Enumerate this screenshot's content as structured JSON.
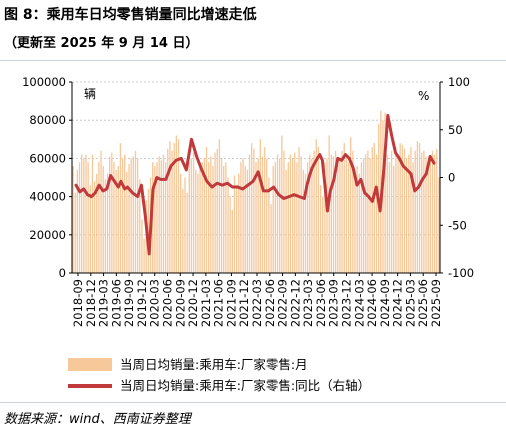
{
  "header": {
    "title": "图 8：乘用车日均零售销量同比增速走低",
    "subtitle": "（更新至 2025 年 9 月 14 日）"
  },
  "footer": {
    "source": "数据来源：wind、西南证券整理"
  },
  "colors": {
    "bar": "#f6c89a",
    "line": "#c0393b",
    "grid": "#bfbfbf"
  },
  "chart_data": {
    "type": "bar",
    "title": "",
    "left_axis": {
      "unit": "辆",
      "ylim": [
        0,
        100000
      ],
      "ticks": [
        "0",
        "20000",
        "40000",
        "60000",
        "80000",
        "100000"
      ]
    },
    "right_axis": {
      "unit": "%",
      "ylim": [
        -100,
        100
      ],
      "ticks": [
        "-100",
        "-50",
        "0",
        "50",
        "100"
      ]
    },
    "x_tick_labels": [
      "2018-09",
      "2018-12",
      "2019-03",
      "2019-06",
      "2019-09",
      "2019-12",
      "2020-03",
      "2020-06",
      "2020-09",
      "2020-12",
      "2021-03",
      "2021-06",
      "2021-09",
      "2021-12",
      "2022-03",
      "2022-06",
      "2022-09",
      "2022-12",
      "2023-03",
      "2023-06",
      "2023-09",
      "2023-12",
      "2024-03",
      "2024-06",
      "2024-09",
      "2024-12",
      "2025-03",
      "2025-06",
      "2025-09"
    ],
    "legend": [
      "当周日均销量:乘用车:厂家零售:月",
      "当周日均销量:乘用车:厂家零售:同比（右轴）"
    ],
    "series": [
      {
        "name": "当周日均销量:乘用车:厂家零售:月",
        "type": "bar",
        "axis": "left",
        "values": [
          56000,
          42000,
          54000,
          58000,
          62000,
          60000,
          62000,
          58000,
          46000,
          62000,
          48000,
          52000,
          58000,
          64000,
          56000,
          49000,
          52000,
          61000,
          63000,
          58000,
          54000,
          56000,
          68000,
          60000,
          62000,
          53000,
          57000,
          60000,
          61000,
          64000,
          60000,
          49000,
          28000,
          18000,
          38000,
          44000,
          50000,
          58000,
          56000,
          58000,
          61000,
          59000,
          62000,
          58000,
          65000,
          69000,
          64000,
          68000,
          72000,
          70000,
          52000,
          44000,
          50000,
          42000,
          58000,
          60000,
          63000,
          54000,
          52000,
          56000,
          58000,
          60000,
          66000,
          58000,
          61000,
          56000,
          63000,
          65000,
          70000,
          60000,
          56000,
          58000,
          50000,
          40000,
          33000,
          51000,
          46000,
          52000,
          58000,
          60000,
          56000,
          54000,
          62000,
          68000,
          65000,
          58000,
          60000,
          70000,
          61000,
          66000,
          60000,
          50000,
          36000,
          56000,
          58000,
          62000,
          60000,
          72000,
          64000,
          54000,
          58000,
          62000,
          60000,
          63000,
          58000,
          66000,
          61000,
          54000,
          52000,
          58000,
          62000,
          60000,
          64000,
          70000,
          66000,
          46000,
          40000,
          58000,
          60000,
          72000,
          62000,
          61000,
          64000,
          58000,
          60000,
          64000,
          68000,
          60000,
          58000,
          71000,
          64000,
          54000,
          56000,
          52000,
          58000,
          60000,
          62000,
          64000,
          60000,
          66000,
          68000,
          62000,
          78000,
          85000,
          80000,
          84000,
          62000,
          58000,
          64000,
          56000,
          66000,
          62000,
          68000,
          67000,
          65000,
          60000,
          62000,
          66000,
          58000,
          64000,
          69000,
          68000,
          63000,
          64000,
          61000,
          56000,
          60000,
          64000,
          62000,
          65000,
          50000
        ]
      },
      {
        "name": "当周日均销量:乘用车:厂家零售:同比（右轴）",
        "type": "line",
        "axis": "right",
        "x": [
          0,
          3,
          6,
          9,
          12,
          15,
          18,
          21,
          24,
          27,
          30,
          33,
          35,
          38,
          40,
          44,
          48,
          51,
          54,
          57,
          60,
          63,
          66,
          70,
          74,
          78,
          82,
          86,
          90,
          94,
          98,
          102,
          106,
          110,
          114,
          118,
          122,
          126,
          130,
          134,
          138,
          142,
          146,
          150,
          154,
          158,
          162,
          166,
          170,
          174,
          178,
          180,
          182,
          184,
          186,
          188,
          190,
          192,
          194,
          196,
          198,
          201,
          204,
          207,
          210,
          213,
          216,
          219,
          222,
          225,
          228,
          231,
          234,
          237,
          240,
          243,
          246,
          249,
          252,
          255,
          258,
          261,
          264,
          267,
          270,
          273,
          276,
          279
        ],
        "values": [
          -8,
          -15,
          -12,
          -18,
          -20,
          -16,
          -8,
          -14,
          -12,
          2,
          -4,
          -10,
          -4,
          -12,
          -10,
          -16,
          -20,
          -8,
          -40,
          -80,
          -12,
          0,
          -2,
          -2,
          12,
          18,
          20,
          8,
          40,
          22,
          8,
          -4,
          -10,
          -6,
          -8,
          -6,
          -10,
          -10,
          -12,
          -8,
          -4,
          6,
          -14,
          -14,
          -10,
          -18,
          -22,
          -20,
          -18,
          -20,
          -22,
          -8,
          2,
          10,
          15,
          20,
          24,
          18,
          -8,
          -35,
          -15,
          -2,
          20,
          18,
          24,
          20,
          10,
          -8,
          -2,
          -16,
          -20,
          -25,
          -10,
          -35,
          10,
          65,
          44,
          26,
          20,
          12,
          8,
          4,
          -14,
          -10,
          -2,
          4,
          22,
          15
        ],
        "x_domain": [
          0,
          279
        ]
      }
    ]
  }
}
